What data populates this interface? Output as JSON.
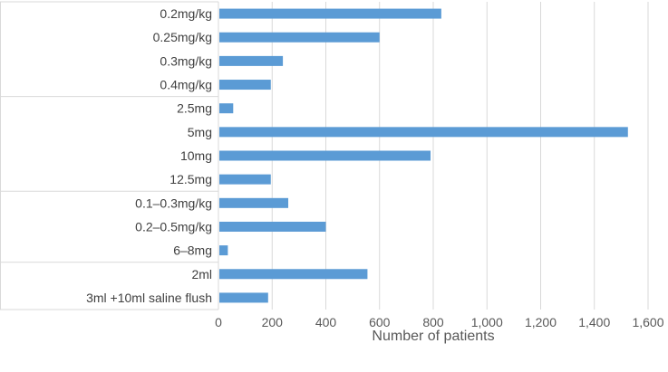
{
  "chart_data": {
    "type": "bar",
    "orientation": "horizontal",
    "categories": [
      "0.2mg/kg",
      "0.25mg/kg",
      "0.3mg/kg",
      "0.4mg/kg",
      "2.5mg",
      "5mg",
      "10mg",
      "12.5mg",
      "0.1–0.3mg/kg",
      "0.2–0.5mg/kg",
      "6–8mg",
      "2ml",
      "3ml +10ml saline flush"
    ],
    "values": [
      830,
      600,
      240,
      195,
      55,
      1525,
      790,
      195,
      260,
      400,
      35,
      555,
      185
    ],
    "groups": [
      4,
      4,
      3,
      2
    ],
    "xlabel": "Number of patients",
    "ylabel": "",
    "xlim": [
      0,
      1600
    ],
    "xticks": [
      "0",
      "200",
      "400",
      "600",
      "800",
      "1,000",
      "1,200",
      "1,400",
      "1,600"
    ],
    "grid": "vertical",
    "legend": "none",
    "bar_color": "#5b9bd5",
    "grid_color": "#d9d9d9"
  }
}
